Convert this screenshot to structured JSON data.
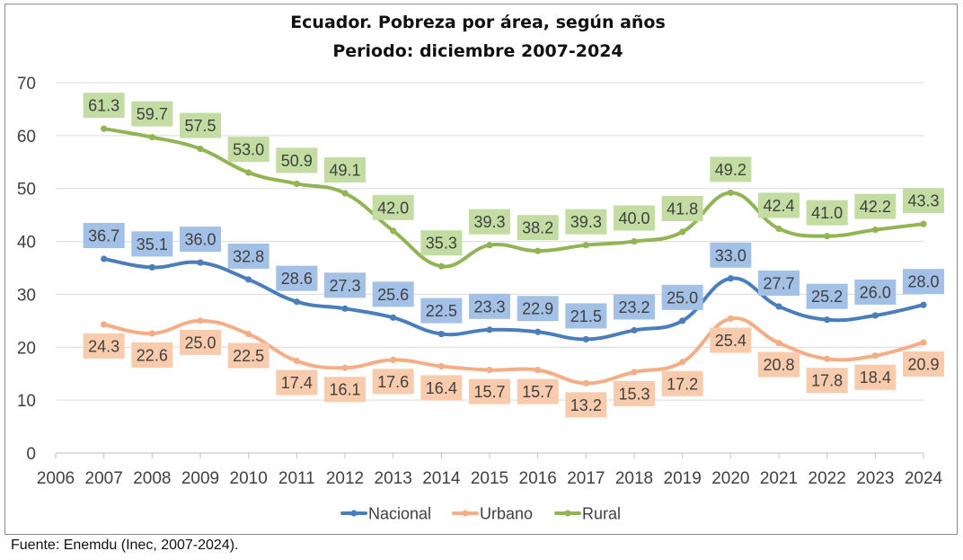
{
  "chart_data": {
    "type": "line",
    "title": "Ecuador. Pobreza por área, según años",
    "subtitle": "Periodo: diciembre 2007-2024",
    "x": [
      2007,
      2008,
      2009,
      2010,
      2011,
      2012,
      2013,
      2014,
      2015,
      2016,
      2017,
      2018,
      2019,
      2020,
      2021,
      2022,
      2023,
      2024
    ],
    "xlim": [
      2006,
      2024
    ],
    "x_ticks": [
      2006,
      2007,
      2008,
      2009,
      2010,
      2011,
      2012,
      2013,
      2014,
      2015,
      2016,
      2017,
      2018,
      2019,
      2020,
      2021,
      2022,
      2023,
      2024
    ],
    "ylim": [
      0,
      70
    ],
    "y_ticks": [
      0,
      10,
      20,
      30,
      40,
      50,
      60,
      70
    ],
    "grid": "horizontal",
    "legend_position": "bottom",
    "series": [
      {
        "name": "Nacional",
        "color": "#4a7ebb",
        "label_bg": "#a3c0e6",
        "label_side": "above",
        "values": [
          36.7,
          35.1,
          36.0,
          32.8,
          28.6,
          27.3,
          25.6,
          22.5,
          23.3,
          22.9,
          21.5,
          23.2,
          25.0,
          33.0,
          27.7,
          25.2,
          26.0,
          28.0
        ],
        "labels": [
          "36.7",
          "35.1",
          "36.0",
          "32.8",
          "28.6",
          "27.3",
          "25.6",
          "22.5",
          "23.3",
          "22.9",
          "21.5",
          "23.2",
          "25.0",
          "33.0",
          "27.7",
          "25.2",
          "26.0",
          "28.0"
        ]
      },
      {
        "name": "Urbano",
        "color": "#f4ad84",
        "label_bg": "#f8cbad",
        "label_side": "below",
        "values": [
          24.3,
          22.6,
          25.0,
          22.5,
          17.4,
          16.1,
          17.6,
          16.4,
          15.7,
          15.7,
          13.2,
          15.3,
          17.2,
          25.4,
          20.8,
          17.8,
          18.4,
          20.9
        ],
        "labels": [
          "24.3",
          "22.6",
          "25.0",
          "22.5",
          "17.4",
          "16.1",
          "17.6",
          "16.4",
          "15.7",
          "15.7",
          "13.2",
          "15.3",
          "17.2",
          "25.4",
          "20.8",
          "17.8",
          "18.4",
          "20.9"
        ]
      },
      {
        "name": "Rural",
        "color": "#92b455",
        "label_bg": "#c3dca2",
        "label_side": "above",
        "values": [
          61.3,
          59.7,
          57.5,
          53.0,
          50.9,
          49.1,
          42.0,
          35.3,
          39.3,
          38.2,
          39.3,
          40.0,
          41.8,
          49.2,
          42.4,
          41.0,
          42.2,
          43.3
        ],
        "labels": [
          "61.3",
          "59.7",
          "57.5",
          "53.0",
          "50.9",
          "49.1",
          "42.0",
          "35.3",
          "39.3",
          "38.2",
          "39.3",
          "40.0",
          "41.8",
          "49.2",
          "42.4",
          "41.0",
          "42.2",
          "43.3"
        ]
      }
    ]
  },
  "source_note": "Fuente: Enemdu (Inec, 2007-2024)."
}
